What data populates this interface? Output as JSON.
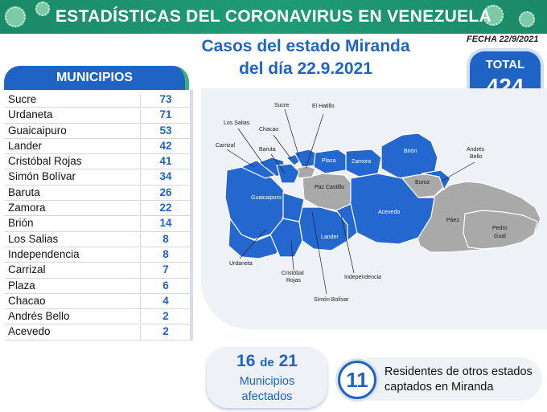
{
  "banner": {
    "title": "ESTADÍSTICAS DEL CORONAVIRUS EN VENEZUELA"
  },
  "headline": {
    "line1": "Casos del estado Miranda",
    "line2": "del día 22.9.2021"
  },
  "fecha": "FECHA 22/9/2021",
  "total": {
    "label": "TOTAL",
    "value": "424"
  },
  "municipios": {
    "header": "MUNICIPIOS",
    "rows": [
      {
        "name": "Sucre",
        "value": "73"
      },
      {
        "name": "Urdaneta",
        "value": "71"
      },
      {
        "name": "Guaicaipuro",
        "value": "53"
      },
      {
        "name": "Lander",
        "value": "42"
      },
      {
        "name": "Cristóbal Rojas",
        "value": "41"
      },
      {
        "name": "Simón Bolívar",
        "value": "34"
      },
      {
        "name": "Baruta",
        "value": "26"
      },
      {
        "name": "Zamora",
        "value": "22"
      },
      {
        "name": "Brión",
        "value": "14"
      },
      {
        "name": "Los Salias",
        "value": "8"
      },
      {
        "name": "Independencia",
        "value": "8"
      },
      {
        "name": "Carrizal",
        "value": "7"
      },
      {
        "name": "Plaza",
        "value": "6"
      },
      {
        "name": "Chacao",
        "value": "4"
      },
      {
        "name": "Andrés Bello",
        "value": "2"
      },
      {
        "name": "Acevedo",
        "value": "2"
      }
    ]
  },
  "map": {
    "labels": {
      "sucre": "Sucre",
      "el_hatillo": "El Hatillo",
      "los_salias": "Los Salias",
      "chacao": "Chacao",
      "carrizal": "Carrizal",
      "baruta": "Baruta",
      "plaza": "Plaza",
      "zamora": "Zamora",
      "brion": "Brión",
      "andres_bello_1": "Andrés",
      "andres_bello_2": "Bello",
      "guaicaipuro": "Guaicaipuro",
      "paz_castillo": "Paz Castillo",
      "buroz": "Buroz",
      "acevedo": "Acevedo",
      "paez": "Páez",
      "pedro_gual_1": "Pedro",
      "pedro_gual_2": "Gual",
      "lander": "Lander",
      "urdaneta": "Urdaneta",
      "cristobal_rojas_1": "Cristóbal",
      "cristobal_rojas_2": "Rojas",
      "independencia": "Independencia",
      "simon_bolivar": "Simón Bolívar"
    },
    "colors": {
      "affected": "#2467cf",
      "unaffected": "#a9a9a9",
      "border": "#ffffff"
    }
  },
  "municipios_afectados": {
    "count": "16",
    "of_word": "de",
    "total": "21",
    "line2": "Municipios",
    "line3": "afectados"
  },
  "residentes": {
    "value": "11",
    "text_line1": "Residentes de otros estados",
    "text_line2": "captados en Miranda"
  }
}
